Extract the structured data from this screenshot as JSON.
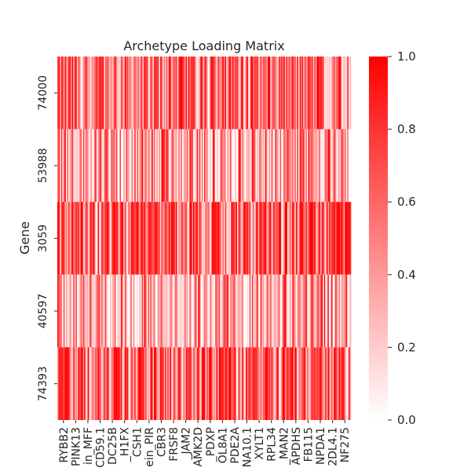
{
  "chart_data": {
    "type": "heatmap",
    "title": "Archetype Loading Matrix",
    "xlabel": "",
    "ylabel": "Gene",
    "rows": [
      "74000",
      "53988",
      "3059",
      "40597",
      "74393"
    ],
    "columns_visible": [
      "RYBB2",
      "PINK13",
      "in_MFF",
      "CD59.1",
      "DC25B",
      "_H1FX",
      "CSH1",
      "ein_PIR",
      "CBR3",
      "FRSF8",
      "_JAM2",
      "AMK2D",
      "_PDXP",
      "OL8A1",
      "PDE2A",
      "NA10.1",
      "XYLT1",
      "RPL34",
      "_MAN2",
      "APDHS",
      "FB115",
      "NPDA1",
      "2DL4.1",
      "NF275"
    ],
    "column_count": 240,
    "row_mean_loading": [
      0.55,
      0.35,
      0.7,
      0.32,
      0.6
    ],
    "value_range": [
      0.0,
      1.0
    ],
    "colormap": {
      "low": "#ffffff",
      "high": "#ff0000"
    },
    "colorbar": {
      "ticks": [
        "0.0",
        "0.2",
        "0.4",
        "0.6",
        "0.8",
        "1.0"
      ]
    },
    "grid": false,
    "legend": "right-colorbar"
  }
}
